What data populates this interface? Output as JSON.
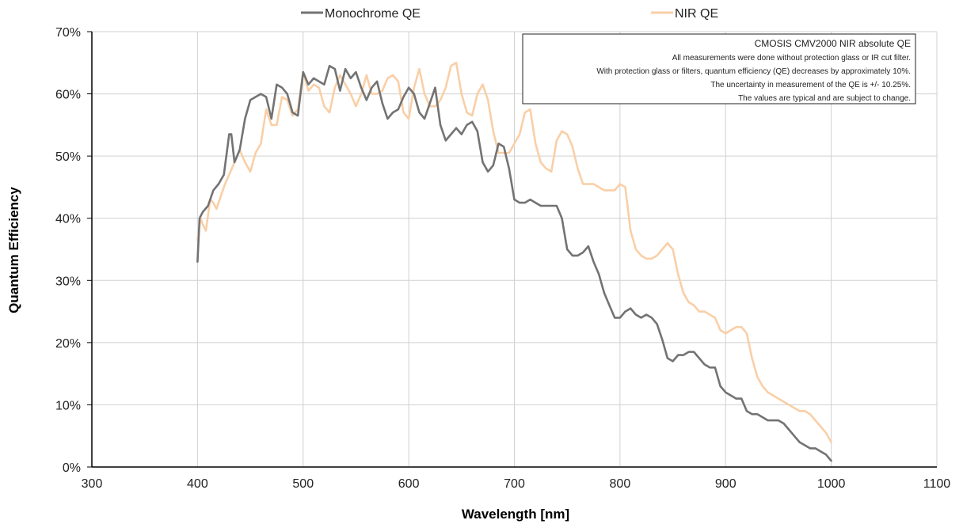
{
  "chart_data": {
    "type": "line",
    "xlabel": "Wavelength [nm]",
    "ylabel": "Quantum Efficiency",
    "xlim": [
      300,
      1100
    ],
    "ylim": [
      0,
      70
    ],
    "x_ticks": [
      300,
      400,
      500,
      600,
      700,
      800,
      900,
      1000,
      1100
    ],
    "x_tick_labels": [
      "300",
      "400",
      "500",
      "600",
      "700",
      "800",
      "900",
      "1000",
      "1100"
    ],
    "y_ticks": [
      0,
      10,
      20,
      30,
      40,
      50,
      60,
      70
    ],
    "y_tick_labels": [
      "0%",
      "10%",
      "20%",
      "30%",
      "40%",
      "50%",
      "60%",
      "70%"
    ],
    "grid": true,
    "legend_position": "top",
    "annotation": {
      "title": "CMOSIS CMV2000 NIR absolute QE",
      "lines": [
        "All measurements were done without protection glass or IR cut filter.",
        "With protection glass or filters, quantum efficiency (QE) decreases by approximately 10%.",
        "The uncertainty in measurement of the QE is +/- 10.25%.",
        "The values are typical and are subject to change."
      ]
    },
    "series": [
      {
        "name": "Monochrome QE",
        "color": "#737373",
        "points": [
          [
            400,
            33.0
          ],
          [
            402,
            40.0
          ],
          [
            405,
            41.0
          ],
          [
            410,
            42.0
          ],
          [
            415,
            44.5
          ],
          [
            420,
            45.5
          ],
          [
            425,
            47.0
          ],
          [
            430,
            53.5
          ],
          [
            432,
            53.5
          ],
          [
            435,
            49.0
          ],
          [
            440,
            51.0
          ],
          [
            445,
            56.0
          ],
          [
            450,
            59.0
          ],
          [
            455,
            59.5
          ],
          [
            460,
            60.0
          ],
          [
            465,
            59.5
          ],
          [
            470,
            56.0
          ],
          [
            475,
            61.5
          ],
          [
            480,
            61.0
          ],
          [
            485,
            60.0
          ],
          [
            490,
            57.0
          ],
          [
            495,
            56.5
          ],
          [
            500,
            63.5
          ],
          [
            505,
            61.5
          ],
          [
            510,
            62.5
          ],
          [
            515,
            62.0
          ],
          [
            520,
            61.5
          ],
          [
            525,
            64.5
          ],
          [
            530,
            64.0
          ],
          [
            535,
            60.5
          ],
          [
            540,
            64.0
          ],
          [
            545,
            62.5
          ],
          [
            550,
            63.5
          ],
          [
            555,
            61.0
          ],
          [
            560,
            59.0
          ],
          [
            565,
            61.0
          ],
          [
            570,
            62.0
          ],
          [
            575,
            58.5
          ],
          [
            580,
            56.0
          ],
          [
            585,
            57.0
          ],
          [
            590,
            57.5
          ],
          [
            595,
            59.5
          ],
          [
            600,
            61.0
          ],
          [
            605,
            60.0
          ],
          [
            610,
            57.0
          ],
          [
            615,
            56.0
          ],
          [
            620,
            58.5
          ],
          [
            625,
            61.0
          ],
          [
            630,
            55.0
          ],
          [
            635,
            52.5
          ],
          [
            640,
            53.5
          ],
          [
            645,
            54.5
          ],
          [
            650,
            53.5
          ],
          [
            655,
            55.0
          ],
          [
            660,
            55.5
          ],
          [
            665,
            54.0
          ],
          [
            670,
            49.0
          ],
          [
            675,
            47.5
          ],
          [
            680,
            48.5
          ],
          [
            685,
            52.0
          ],
          [
            690,
            51.5
          ],
          [
            695,
            48.0
          ],
          [
            700,
            43.0
          ],
          [
            705,
            42.5
          ],
          [
            710,
            42.5
          ],
          [
            715,
            43.0
          ],
          [
            720,
            42.5
          ],
          [
            725,
            42.0
          ],
          [
            735,
            42.0
          ],
          [
            740,
            42.0
          ],
          [
            745,
            40.0
          ],
          [
            750,
            35.0
          ],
          [
            755,
            34.0
          ],
          [
            760,
            34.0
          ],
          [
            765,
            34.5
          ],
          [
            770,
            35.5
          ],
          [
            775,
            33.0
          ],
          [
            780,
            31.0
          ],
          [
            785,
            28.0
          ],
          [
            790,
            26.0
          ],
          [
            795,
            24.0
          ],
          [
            800,
            24.0
          ],
          [
            805,
            25.0
          ],
          [
            810,
            25.5
          ],
          [
            815,
            24.5
          ],
          [
            820,
            24.0
          ],
          [
            825,
            24.5
          ],
          [
            830,
            24.0
          ],
          [
            835,
            23.0
          ],
          [
            840,
            20.5
          ],
          [
            845,
            17.5
          ],
          [
            850,
            17.0
          ],
          [
            855,
            18.0
          ],
          [
            860,
            18.0
          ],
          [
            865,
            18.5
          ],
          [
            870,
            18.5
          ],
          [
            875,
            17.5
          ],
          [
            880,
            16.5
          ],
          [
            885,
            16.0
          ],
          [
            890,
            16.0
          ],
          [
            895,
            13.0
          ],
          [
            900,
            12.0
          ],
          [
            905,
            11.5
          ],
          [
            910,
            11.0
          ],
          [
            915,
            11.0
          ],
          [
            920,
            9.0
          ],
          [
            925,
            8.5
          ],
          [
            930,
            8.5
          ],
          [
            935,
            8.0
          ],
          [
            940,
            7.5
          ],
          [
            945,
            7.5
          ],
          [
            950,
            7.5
          ],
          [
            955,
            7.0
          ],
          [
            960,
            6.0
          ],
          [
            965,
            5.0
          ],
          [
            970,
            4.0
          ],
          [
            975,
            3.5
          ],
          [
            980,
            3.0
          ],
          [
            985,
            3.0
          ],
          [
            990,
            2.5
          ],
          [
            995,
            2.0
          ],
          [
            1000,
            1.0
          ]
        ]
      },
      {
        "name": "NIR QE",
        "color": "#f9cfa7",
        "points": [
          [
            400,
            36.5
          ],
          [
            403,
            40.0
          ],
          [
            405,
            39.0
          ],
          [
            408,
            38.0
          ],
          [
            412,
            43.0
          ],
          [
            415,
            42.5
          ],
          [
            418,
            41.5
          ],
          [
            422,
            43.5
          ],
          [
            426,
            45.5
          ],
          [
            430,
            47.0
          ],
          [
            435,
            49.0
          ],
          [
            440,
            51.0
          ],
          [
            445,
            49.0
          ],
          [
            450,
            47.5
          ],
          [
            455,
            50.5
          ],
          [
            460,
            52.0
          ],
          [
            465,
            57.5
          ],
          [
            470,
            55.0
          ],
          [
            475,
            55.0
          ],
          [
            480,
            59.5
          ],
          [
            485,
            59.0
          ],
          [
            490,
            56.5
          ],
          [
            495,
            57.5
          ],
          [
            500,
            63.5
          ],
          [
            505,
            60.5
          ],
          [
            510,
            61.5
          ],
          [
            515,
            61.0
          ],
          [
            520,
            58.0
          ],
          [
            525,
            57.0
          ],
          [
            530,
            61.0
          ],
          [
            535,
            63.0
          ],
          [
            540,
            61.5
          ],
          [
            545,
            60.0
          ],
          [
            550,
            58.0
          ],
          [
            555,
            60.0
          ],
          [
            560,
            63.0
          ],
          [
            565,
            60.0
          ],
          [
            570,
            60.0
          ],
          [
            575,
            60.5
          ],
          [
            580,
            62.5
          ],
          [
            585,
            63.0
          ],
          [
            590,
            62.0
          ],
          [
            595,
            57.0
          ],
          [
            600,
            56.0
          ],
          [
            605,
            61.0
          ],
          [
            610,
            64.0
          ],
          [
            615,
            60.0
          ],
          [
            620,
            58.0
          ],
          [
            625,
            58.0
          ],
          [
            630,
            59.0
          ],
          [
            635,
            61.0
          ],
          [
            640,
            64.5
          ],
          [
            645,
            65.0
          ],
          [
            650,
            60.0
          ],
          [
            655,
            57.0
          ],
          [
            660,
            56.5
          ],
          [
            665,
            60.0
          ],
          [
            670,
            61.5
          ],
          [
            675,
            59.0
          ],
          [
            680,
            54.0
          ],
          [
            685,
            50.5
          ],
          [
            690,
            50.5
          ],
          [
            695,
            50.5
          ],
          [
            700,
            52.0
          ],
          [
            705,
            53.5
          ],
          [
            710,
            57.0
          ],
          [
            715,
            57.5
          ],
          [
            720,
            52.0
          ],
          [
            725,
            49.0
          ],
          [
            730,
            48.0
          ],
          [
            735,
            47.5
          ],
          [
            740,
            52.5
          ],
          [
            745,
            54.0
          ],
          [
            750,
            53.5
          ],
          [
            755,
            51.5
          ],
          [
            760,
            48.0
          ],
          [
            765,
            45.5
          ],
          [
            770,
            45.5
          ],
          [
            775,
            45.5
          ],
          [
            780,
            45.0
          ],
          [
            785,
            44.5
          ],
          [
            790,
            44.5
          ],
          [
            795,
            44.5
          ],
          [
            800,
            45.5
          ],
          [
            805,
            45.0
          ],
          [
            810,
            38.0
          ],
          [
            815,
            35.0
          ],
          [
            820,
            34.0
          ],
          [
            825,
            33.5
          ],
          [
            830,
            33.5
          ],
          [
            835,
            34.0
          ],
          [
            840,
            35.0
          ],
          [
            845,
            36.0
          ],
          [
            850,
            35.0
          ],
          [
            855,
            31.0
          ],
          [
            860,
            28.0
          ],
          [
            865,
            26.5
          ],
          [
            870,
            26.0
          ],
          [
            875,
            25.0
          ],
          [
            880,
            25.0
          ],
          [
            885,
            24.5
          ],
          [
            890,
            24.0
          ],
          [
            895,
            22.0
          ],
          [
            900,
            21.5
          ],
          [
            905,
            22.0
          ],
          [
            910,
            22.5
          ],
          [
            915,
            22.5
          ],
          [
            920,
            21.5
          ],
          [
            925,
            17.5
          ],
          [
            930,
            14.5
          ],
          [
            935,
            13.0
          ],
          [
            940,
            12.0
          ],
          [
            945,
            11.5
          ],
          [
            950,
            11.0
          ],
          [
            955,
            10.5
          ],
          [
            960,
            10.0
          ],
          [
            965,
            9.5
          ],
          [
            970,
            9.0
          ],
          [
            975,
            9.0
          ],
          [
            980,
            8.5
          ],
          [
            985,
            7.5
          ],
          [
            990,
            6.5
          ],
          [
            995,
            5.5
          ],
          [
            1000,
            4.0
          ]
        ]
      }
    ]
  }
}
